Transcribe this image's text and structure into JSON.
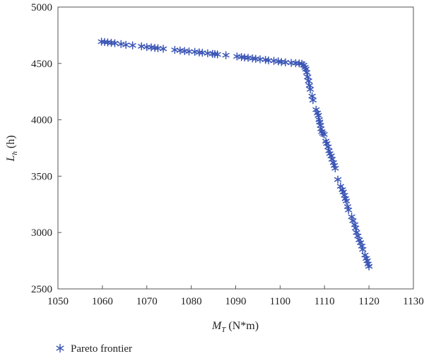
{
  "chart_data": {
    "type": "scatter",
    "xlabel": {
      "main": "M",
      "sub": "T",
      "rest": " (N*m)"
    },
    "ylabel": {
      "main": "L",
      "sub": "h",
      "rest": " (h)"
    },
    "xlim": [
      1050,
      1130
    ],
    "ylim": [
      2500,
      5000
    ],
    "xticks": [
      1050,
      1060,
      1070,
      1080,
      1090,
      1100,
      1110,
      1120,
      1130
    ],
    "yticks": [
      2500,
      3000,
      3500,
      4000,
      4500,
      5000
    ],
    "grid": false,
    "legend_position": "bottom-left",
    "marker": "asterisk",
    "color": "#3a55b5",
    "series": [
      {
        "name": "Pareto frontier",
        "points": [
          [
            1059.8,
            4693
          ],
          [
            1060.5,
            4690
          ],
          [
            1061.2,
            4687
          ],
          [
            1062.0,
            4683
          ],
          [
            1062.8,
            4680
          ],
          [
            1064.2,
            4672
          ],
          [
            1065.3,
            4665
          ],
          [
            1066.8,
            4660
          ],
          [
            1068.8,
            4652
          ],
          [
            1070.0,
            4645
          ],
          [
            1071.0,
            4643
          ],
          [
            1071.8,
            4638
          ],
          [
            1072.5,
            4635
          ],
          [
            1073.7,
            4630
          ],
          [
            1076.3,
            4620
          ],
          [
            1077.5,
            4615
          ],
          [
            1078.5,
            4610
          ],
          [
            1079.5,
            4606
          ],
          [
            1080.8,
            4603
          ],
          [
            1081.8,
            4598
          ],
          [
            1082.5,
            4595
          ],
          [
            1083.7,
            4590
          ],
          [
            1084.8,
            4585
          ],
          [
            1085.3,
            4583
          ],
          [
            1085.9,
            4580
          ],
          [
            1087.8,
            4573
          ],
          [
            1090.3,
            4562
          ],
          [
            1091.3,
            4557
          ],
          [
            1092.0,
            4553
          ],
          [
            1092.8,
            4550
          ],
          [
            1093.8,
            4545
          ],
          [
            1094.5,
            4541
          ],
          [
            1095.5,
            4537
          ],
          [
            1096.7,
            4532
          ],
          [
            1097.4,
            4527
          ],
          [
            1098.6,
            4523
          ],
          [
            1099.6,
            4518
          ],
          [
            1100.3,
            4513
          ],
          [
            1101.2,
            4510
          ],
          [
            1102.5,
            4505
          ],
          [
            1103.5,
            4503
          ],
          [
            1104.3,
            4500
          ],
          [
            1104.9,
            4497
          ],
          [
            1105.3,
            4485
          ],
          [
            1105.6,
            4465
          ],
          [
            1105.8,
            4450
          ],
          [
            1106.0,
            4420
          ],
          [
            1106.2,
            4380
          ],
          [
            1106.4,
            4345
          ],
          [
            1106.6,
            4305
          ],
          [
            1106.8,
            4270
          ],
          [
            1107.2,
            4210
          ],
          [
            1107.4,
            4175
          ],
          [
            1108.1,
            4090
          ],
          [
            1108.4,
            4060
          ],
          [
            1108.6,
            4040
          ],
          [
            1108.8,
            4000
          ],
          [
            1108.9,
            3980
          ],
          [
            1109.1,
            3950
          ],
          [
            1109.2,
            3920
          ],
          [
            1109.4,
            3895
          ],
          [
            1109.6,
            3880
          ],
          [
            1109.9,
            3870
          ],
          [
            1110.3,
            3810
          ],
          [
            1110.5,
            3790
          ],
          [
            1110.8,
            3760
          ],
          [
            1111.0,
            3725
          ],
          [
            1111.2,
            3700
          ],
          [
            1111.5,
            3680
          ],
          [
            1111.7,
            3650
          ],
          [
            1112.0,
            3620
          ],
          [
            1112.2,
            3595
          ],
          [
            1112.4,
            3570
          ],
          [
            1113.0,
            3470
          ],
          [
            1113.6,
            3410
          ],
          [
            1114.0,
            3380
          ],
          [
            1114.2,
            3360
          ],
          [
            1114.5,
            3330
          ],
          [
            1114.7,
            3300
          ],
          [
            1114.9,
            3280
          ],
          [
            1115.2,
            3230
          ],
          [
            1115.4,
            3200
          ],
          [
            1116.1,
            3140
          ],
          [
            1116.4,
            3105
          ],
          [
            1116.8,
            3070
          ],
          [
            1117.0,
            3040
          ],
          [
            1117.2,
            3000
          ],
          [
            1117.5,
            2970
          ],
          [
            1117.8,
            2935
          ],
          [
            1118.1,
            2910
          ],
          [
            1118.4,
            2880
          ],
          [
            1118.6,
            2850
          ],
          [
            1119.1,
            2800
          ],
          [
            1119.4,
            2770
          ],
          [
            1119.6,
            2750
          ],
          [
            1119.8,
            2720
          ],
          [
            1120.0,
            2700
          ]
        ]
      }
    ]
  }
}
